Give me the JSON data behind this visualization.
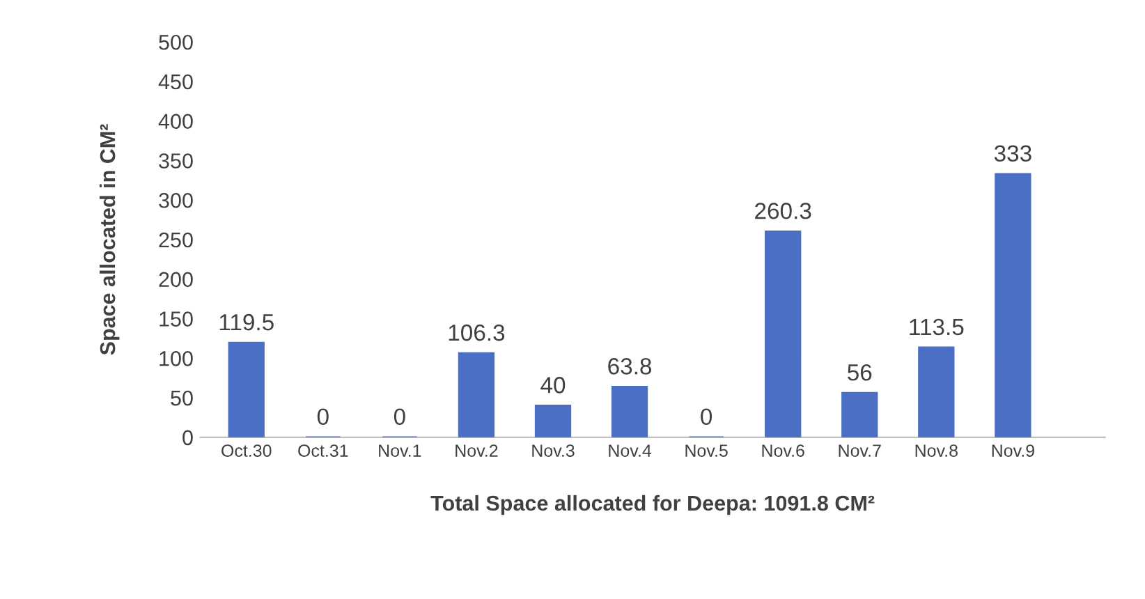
{
  "chart_data": {
    "type": "bar",
    "xlabel": "Total Space allocated for Deepa: 1091.8 CM²",
    "ylabel": "Space allocated in CM²",
    "categories": [
      "Oct.30",
      "Oct.31",
      "Nov.1",
      "Nov.2",
      "Nov.3",
      "Nov.4",
      "Nov.5",
      "Nov.6",
      "Nov.7",
      "Nov.8",
      "Nov.9"
    ],
    "values": [
      119.5,
      0,
      0,
      106.3,
      40,
      63.8,
      0,
      260.3,
      56,
      113.5,
      333
    ],
    "color": "#4a6fc4",
    "ylim": [
      0,
      500
    ],
    "yticks": [
      0,
      50,
      100,
      150,
      200,
      250,
      300,
      350,
      400,
      450,
      500
    ],
    "data_labels": true,
    "grid": false,
    "legend": false
  }
}
